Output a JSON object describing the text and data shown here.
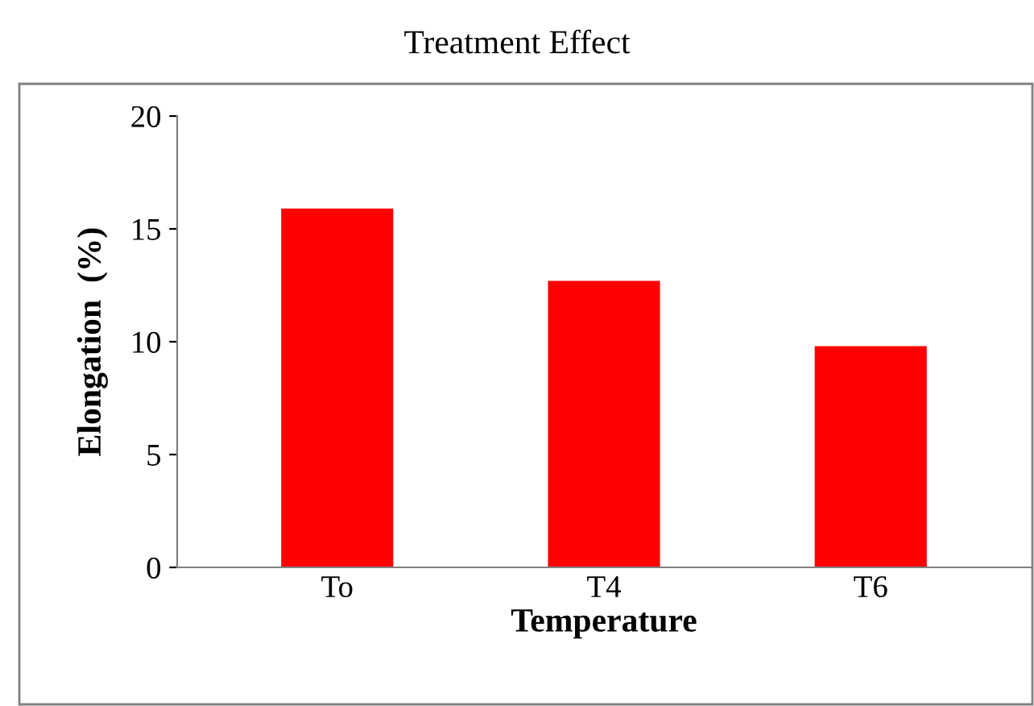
{
  "chart_data": {
    "type": "bar",
    "title": "Treatment Effect",
    "xlabel": "Temperature",
    "ylabel": "Elongation  (%)",
    "categories": [
      "To",
      "T4",
      "T6"
    ],
    "values": [
      15.9,
      12.7,
      9.8
    ],
    "color": "#ff0000",
    "ylim": [
      0,
      20
    ],
    "yticks": [
      0,
      5,
      10,
      15,
      20
    ],
    "grid": false,
    "legend": false
  }
}
